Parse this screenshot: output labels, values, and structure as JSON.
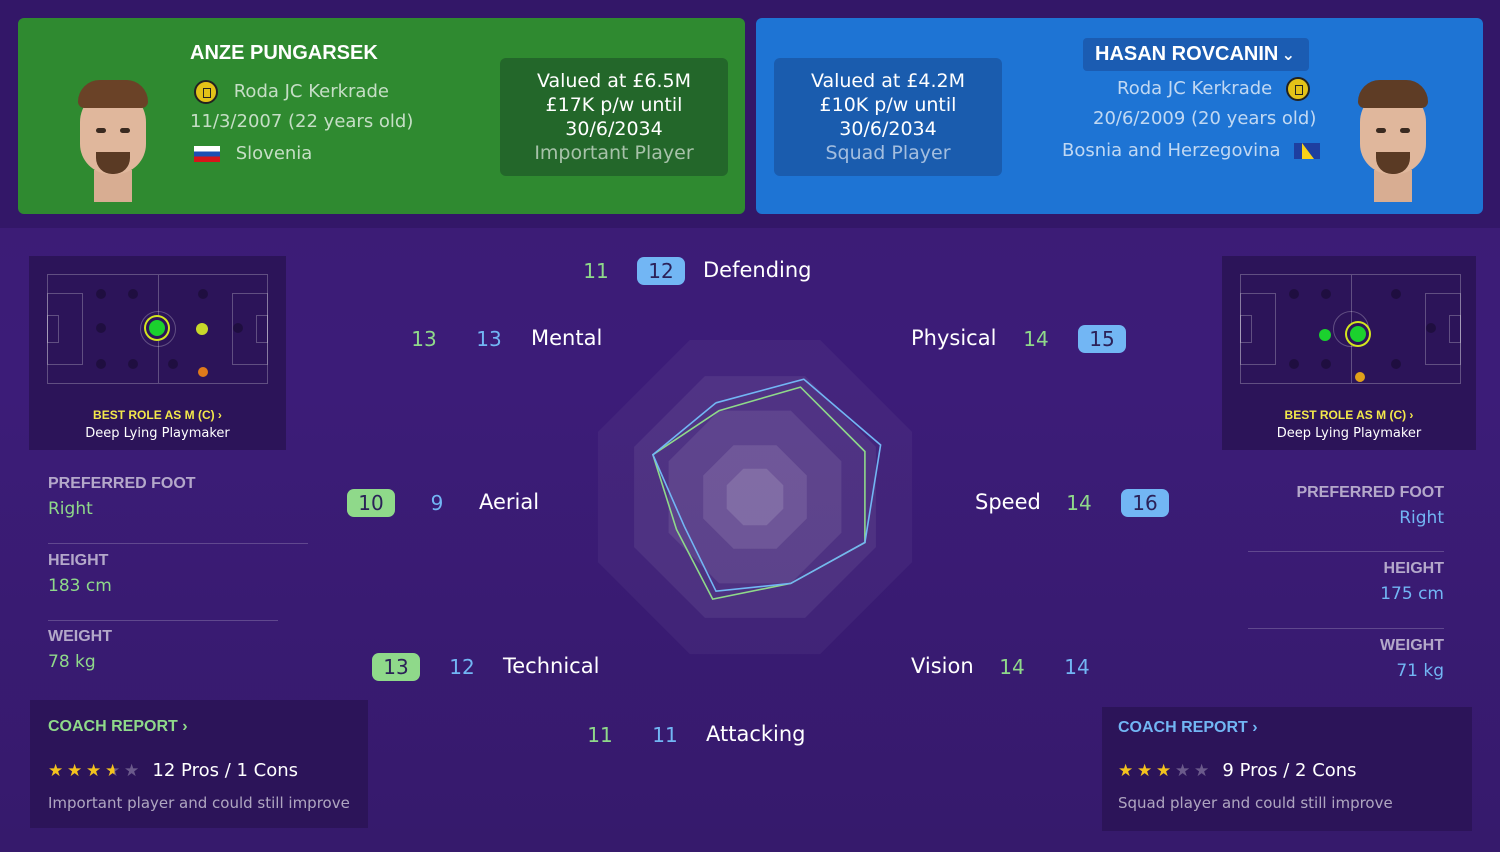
{
  "player_left": {
    "name": "ANZE PUNGARSEK",
    "club": "Roda JC Kerkrade",
    "dob": "11/3/2007 (22 years old)",
    "nation": "Slovenia",
    "value_line1": "Valued at £6.5M",
    "value_line2": "£17K p/w until",
    "value_line3": "30/6/2034",
    "status": "Important Player",
    "best_role_label": "BEST ROLE AS M (C) ›",
    "best_role": "Deep Lying Playmaker",
    "preferred_foot_label": "PREFERRED FOOT",
    "preferred_foot": "Right",
    "height_label": "HEIGHT",
    "height": "183 cm",
    "weight_label": "WEIGHT",
    "weight": "78 kg",
    "coach_title": "COACH REPORT ›",
    "stars": 3.5,
    "pros_cons": "12 Pros / 1 Cons",
    "coach_desc": "Important player and could still improve"
  },
  "player_right": {
    "name": "HASAN ROVCANIN",
    "club": "Roda JC Kerkrade",
    "dob": "20/6/2009 (20 years old)",
    "nation": "Bosnia and Herzegovina",
    "value_line1": "Valued at £4.2M",
    "value_line2": "£10K p/w until",
    "value_line3": "30/6/2034",
    "status": "Squad Player",
    "best_role_label": "BEST ROLE AS M (C) ›",
    "best_role": "Deep Lying Playmaker",
    "preferred_foot_label": "PREFERRED FOOT",
    "preferred_foot": "Right",
    "height_label": "HEIGHT",
    "height": "175 cm",
    "weight_label": "WEIGHT",
    "weight": "71 kg",
    "coach_title": "COACH REPORT ›",
    "stars": 3,
    "pros_cons": "9 Pros / 2 Cons",
    "coach_desc": "Squad player and could still improve"
  },
  "attributes": {
    "defending": {
      "label": "Defending",
      "left": "11",
      "right": "12"
    },
    "mental": {
      "label": "Mental",
      "left": "13",
      "right": "13"
    },
    "physical": {
      "label": "Physical",
      "left": "14",
      "right": "15"
    },
    "aerial": {
      "label": "Aerial",
      "left": "10",
      "right": "9"
    },
    "speed": {
      "label": "Speed",
      "left": "14",
      "right": "16"
    },
    "technical": {
      "label": "Technical",
      "left": "13",
      "right": "12"
    },
    "vision": {
      "label": "Vision",
      "left": "14",
      "right": "14"
    },
    "attacking": {
      "label": "Attacking",
      "left": "11",
      "right": "11"
    }
  },
  "colors": {
    "left_accent": "#8fd98a",
    "right_accent": "#72b6f4",
    "left_card": "#2f8a30",
    "right_card": "#1e74d4"
  }
}
